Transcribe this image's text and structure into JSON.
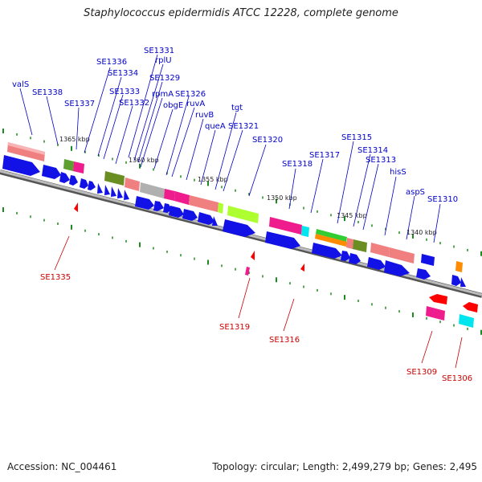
{
  "title": "Staphylococcus epidermidis ATCC 12228, complete genome",
  "footer": {
    "accession": "Accession: NC_004461",
    "topology": "Topology: circular; Length: 2,499,279 bp; Genes: 2,495"
  },
  "colors": {
    "forward_gene": "#1212e6",
    "reverse_gene": "#ff0000",
    "forward_label": "#0000c8",
    "reverse_label": "#cc0000",
    "backbone": "#9a9a9a",
    "tick": "#1f8a1f"
  },
  "scale_labels": [
    "1365 kbp",
    "1360 kbp",
    "1355 kbp",
    "1350 kbp",
    "1345 kbp",
    "1340 kbp"
  ],
  "forward_labels": [
    "valS",
    "SE1338",
    "SE1337",
    "SE1336",
    "SE1334",
    "SE1333",
    "SE1332",
    "SE1331",
    "rplU",
    "SE1329",
    "rpmA",
    "obgE",
    "SE1326",
    "ruvA",
    "ruvB",
    "queA",
    "tgt",
    "SE1321",
    "SE1320",
    "SE1318",
    "SE1317",
    "SE1315",
    "SE1314",
    "SE1313",
    "hisS",
    "aspS",
    "SE1310"
  ],
  "reverse_labels": [
    "SE1335",
    "SE1319",
    "SE1316",
    "SE1309",
    "SE1306"
  ]
}
